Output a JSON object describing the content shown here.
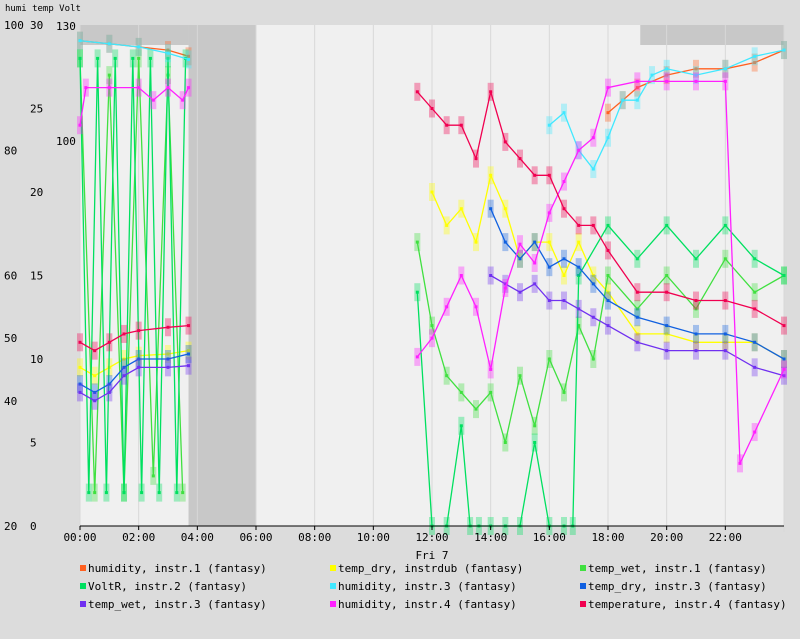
{
  "chart_data": {
    "type": "line",
    "title": "humi temp Volt",
    "xlabel": "Fri 7",
    "x_ticks": [
      "00:00",
      "02:00",
      "04:00",
      "06:00",
      "08:00",
      "10:00",
      "12:00",
      "14:00",
      "16:00",
      "18:00",
      "20:00",
      "22:00"
    ],
    "axes": [
      {
        "name": "humi",
        "ticks": [
          "100",
          "80",
          "60",
          "50",
          "40",
          "20"
        ],
        "ylim": [
          20,
          100
        ]
      },
      {
        "name": "temp",
        "ticks": [
          "30",
          "25",
          "20",
          "15",
          "10",
          "5",
          "0"
        ],
        "ylim": [
          0,
          30
        ]
      },
      {
        "name": "Volt",
        "ticks": [
          "130",
          "100"
        ]
      }
    ],
    "grid": true,
    "legend_position": "bottom",
    "series": [
      {
        "name": "humidity, instr.1 (fantasy)",
        "color": "#ff6020",
        "axis": "humi",
        "x": [
          0,
          1,
          2,
          3,
          3.7,
          11.5,
          12,
          13,
          14,
          15,
          15.5,
          16,
          17,
          18,
          18.5,
          19,
          20,
          21,
          22,
          23,
          24
        ],
        "y": [
          97.5,
          97,
          96.5,
          96,
          95,
          null,
          null,
          null,
          null,
          null,
          null,
          null,
          null,
          86,
          88,
          90,
          92,
          93,
          93,
          94,
          96
        ]
      },
      {
        "name": "temp_dry, instrdub (fantasy)",
        "color": "#ffff00",
        "axis": "temp",
        "x": [
          0,
          0.5,
          1,
          1.5,
          2,
          3,
          3.7,
          11.5,
          12,
          12.5,
          13,
          13.5,
          14,
          14.5,
          15,
          15.5,
          16,
          16.5,
          17,
          17.5,
          18,
          19,
          20,
          21,
          22,
          23,
          24
        ],
        "y": [
          9.5,
          9,
          9.5,
          10,
          10.2,
          10.3,
          10.5,
          null,
          20,
          18,
          19,
          17,
          21,
          19,
          16,
          17,
          17,
          15,
          17,
          15,
          14,
          11.5,
          11.5,
          11,
          11,
          11,
          10
        ]
      },
      {
        "name": "temp_wet, instr.1 (fantasy)",
        "color": "#40e040",
        "axis": "temp",
        "x": [
          0,
          0.5,
          1,
          1.5,
          2,
          2.5,
          3,
          3.5,
          11,
          11.5,
          12,
          12.5,
          13,
          13.5,
          14,
          14.5,
          15,
          15.5,
          16,
          16.5,
          17,
          17.5,
          18,
          19,
          20,
          21,
          22,
          23,
          24
        ],
        "y": [
          28,
          2,
          27,
          2,
          28,
          3,
          27,
          2,
          null,
          17,
          12,
          9,
          8,
          7,
          8,
          5,
          9,
          6,
          10,
          8,
          12,
          10,
          15,
          13,
          15,
          13,
          16,
          14,
          15
        ]
      },
      {
        "name": "VoltR, instr.2 (fantasy)",
        "color": "#00e060",
        "axis": "temp",
        "x": [
          0,
          0.3,
          0.6,
          0.9,
          1.2,
          1.5,
          1.8,
          2.1,
          2.4,
          2.7,
          3,
          3.3,
          3.6,
          11,
          11.5,
          12,
          12.5,
          13,
          13.3,
          13.6,
          14,
          14.5,
          15,
          15.5,
          16,
          16.5,
          16.8,
          17,
          18,
          19,
          20,
          21,
          22,
          23,
          24
        ],
        "y": [
          28,
          2,
          28,
          2,
          28,
          2,
          28,
          2,
          28,
          2,
          28,
          2,
          28,
          null,
          14,
          0,
          0,
          6,
          0,
          0,
          0,
          0,
          0,
          5,
          0,
          0,
          0,
          15,
          18,
          16,
          18,
          16,
          18,
          16,
          15
        ]
      },
      {
        "name": "humidity, instr.3 (fantasy)",
        "color": "#40e8ff",
        "axis": "humi",
        "x": [
          0,
          1,
          2,
          3,
          3.7,
          11.5,
          16,
          16.5,
          17,
          17.5,
          18,
          18.5,
          19,
          19.5,
          20,
          21,
          22,
          23,
          24
        ],
        "y": [
          97.5,
          97,
          96.5,
          95.5,
          94.5,
          null,
          84,
          86,
          80,
          77,
          82,
          88,
          88,
          92,
          93,
          92,
          93,
          95,
          96
        ]
      },
      {
        "name": "temp_dry, instr.3 (fantasy)",
        "color": "#1060e0",
        "axis": "temp",
        "x": [
          0,
          0.5,
          1,
          1.5,
          2,
          3,
          3.7,
          11.5,
          14,
          14.5,
          15,
          15.5,
          16,
          16.5,
          17,
          17.5,
          18,
          19,
          20,
          21,
          22,
          23,
          24
        ],
        "y": [
          8.5,
          8,
          8.5,
          9.5,
          10,
          10,
          10.3,
          null,
          19,
          17,
          16,
          17,
          15.5,
          16,
          15.5,
          14.5,
          13.5,
          12.5,
          12,
          11.5,
          11.5,
          11,
          10
        ]
      },
      {
        "name": "temp_wet, instr.3 (fantasy)",
        "color": "#7030f0",
        "axis": "temp",
        "x": [
          0,
          0.5,
          1,
          1.5,
          2,
          3,
          3.7,
          11.5,
          14,
          14.5,
          15,
          15.5,
          16,
          16.5,
          17,
          17.5,
          18,
          19,
          20,
          21,
          22,
          23,
          24
        ],
        "y": [
          8,
          7.5,
          8,
          9,
          9.5,
          9.5,
          9.6,
          null,
          15,
          14.5,
          14,
          14.5,
          13.5,
          13.5,
          13,
          12.5,
          12,
          11,
          10.5,
          10.5,
          10.5,
          9.5,
          9
        ]
      },
      {
        "name": "humidity, instr.4 (fantasy)",
        "color": "#ff20ff",
        "axis": "humi",
        "x": [
          0,
          0.2,
          1,
          2,
          2.5,
          3,
          3.5,
          3.7,
          11,
          11.5,
          12,
          12.5,
          13,
          13.5,
          14,
          14.5,
          15,
          15.5,
          16,
          16.5,
          17,
          17.5,
          18,
          19,
          20,
          21,
          22,
          22.5,
          23,
          24
        ],
        "y": [
          84,
          90,
          90,
          90,
          88,
          90,
          88,
          90,
          null,
          47,
          50,
          55,
          60,
          55,
          45,
          58,
          65,
          62,
          70,
          75,
          80,
          82,
          90,
          91,
          91,
          91,
          91,
          30,
          35,
          45
        ]
      },
      {
        "name": "temperature, instr.4 (fantasy)",
        "color": "#f00050",
        "axis": "temp",
        "x": [
          0,
          0.5,
          1,
          1.5,
          2,
          3,
          3.7,
          11,
          11.5,
          12,
          12.5,
          13,
          13.5,
          14,
          14.5,
          15,
          15.5,
          16,
          16.5,
          17,
          17.5,
          18,
          19,
          20,
          21,
          22,
          23,
          24
        ],
        "y": [
          11,
          10.5,
          11,
          11.5,
          11.7,
          11.9,
          12,
          null,
          26,
          25,
          24,
          24,
          22,
          26,
          23,
          22,
          21,
          21,
          19,
          18,
          18,
          16.5,
          14,
          14,
          13.5,
          13.5,
          13,
          12
        ]
      }
    ]
  }
}
